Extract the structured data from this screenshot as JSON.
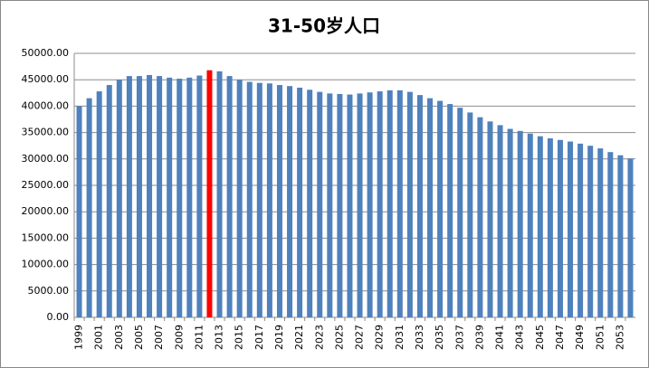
{
  "chart_data": {
    "type": "bar",
    "title": "31-50岁人口",
    "categories": [
      "1999",
      null,
      "2001",
      null,
      "2003",
      null,
      "2005",
      null,
      "2007",
      null,
      "2009",
      null,
      "2011",
      null,
      "2013",
      null,
      "2015",
      null,
      "2017",
      null,
      "2019",
      null,
      "2021",
      null,
      "2023",
      null,
      "2025",
      null,
      "2027",
      null,
      "2029",
      null,
      "2031",
      null,
      "2033",
      null,
      "2035",
      null,
      "2037",
      null,
      "2039",
      null,
      "2041",
      null,
      "2043",
      null,
      "2045",
      null,
      "2047",
      null,
      "2049",
      null,
      "2051",
      null,
      "2053",
      null
    ],
    "values": [
      40000,
      41500,
      42800,
      44000,
      45000,
      45700,
      45700,
      45900,
      45700,
      45400,
      45200,
      45400,
      45800,
      46800,
      46600,
      45700,
      45000,
      44600,
      44400,
      44300,
      44000,
      43800,
      43500,
      43100,
      42700,
      42400,
      42300,
      42200,
      42400,
      42600,
      42800,
      43000,
      43000,
      42700,
      42100,
      41500,
      41000,
      40400,
      39700,
      38800,
      37900,
      37100,
      36400,
      35700,
      35300,
      34800,
      34300,
      33900,
      33600,
      33300,
      32900,
      32500,
      32000,
      31300,
      30700,
      30100
    ],
    "color": "#4f81bd",
    "colors": [
      "#4f81bd",
      "#4f81bd",
      "#4f81bd",
      "#4f81bd",
      "#4f81bd",
      "#4f81bd",
      "#4f81bd",
      "#4f81bd",
      "#4f81bd",
      "#4f81bd",
      "#4f81bd",
      "#4f81bd",
      "#4f81bd",
      "#ff0000",
      "#4f81bd",
      "#4f81bd",
      "#4f81bd",
      "#4f81bd",
      "#4f81bd",
      "#4f81bd",
      "#4f81bd",
      "#4f81bd",
      "#4f81bd",
      "#4f81bd",
      "#4f81bd",
      "#4f81bd",
      "#4f81bd",
      "#4f81bd",
      "#4f81bd",
      "#4f81bd",
      "#4f81bd",
      "#4f81bd",
      "#4f81bd",
      "#4f81bd",
      "#4f81bd",
      "#4f81bd",
      "#4f81bd",
      "#4f81bd",
      "#4f81bd",
      "#4f81bd",
      "#4f81bd",
      "#4f81bd",
      "#4f81bd",
      "#4f81bd",
      "#4f81bd",
      "#4f81bd",
      "#4f81bd",
      "#4f81bd",
      "#4f81bd",
      "#4f81bd",
      "#4f81bd",
      "#4f81bd",
      "#4f81bd",
      "#4f81bd",
      "#4f81bd",
      "#4f81bd"
    ],
    "ylim": [
      0,
      50000
    ],
    "yticks": [
      {
        "value": 0,
        "label": "0.00"
      },
      {
        "value": 5000,
        "label": "5000.00"
      },
      {
        "value": 10000,
        "label": "10000.00"
      },
      {
        "value": 15000,
        "label": "15000.00"
      },
      {
        "value": 20000,
        "label": "20000.00"
      },
      {
        "value": 25000,
        "label": "25000.00"
      },
      {
        "value": 30000,
        "label": "30000.00"
      },
      {
        "value": 35000,
        "label": "35000.00"
      },
      {
        "value": 40000,
        "label": "40000.00"
      },
      {
        "value": 45000,
        "label": "45000.00"
      },
      {
        "value": 50000,
        "label": "50000.00"
      }
    ],
    "grid": true
  }
}
